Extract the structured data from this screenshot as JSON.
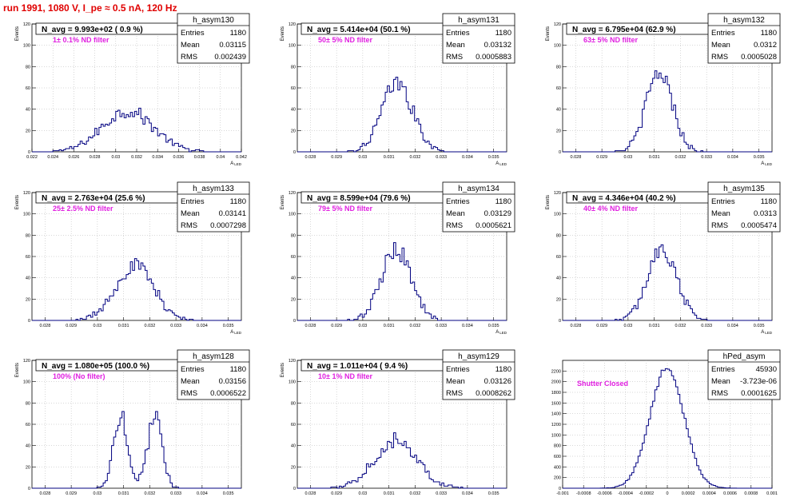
{
  "page_title": "run 1991,  1080 V, I_pe ≈ 0.5 nA, 120 Hz",
  "colors": {
    "title": "#e00000",
    "histogram": "#000080",
    "annotation": "#e020e0",
    "grid": "#b0b0b0"
  },
  "chart_data": [
    {
      "type": "histogram",
      "name": "h_asym130",
      "header": "N_avg = 9.993e+02 ( 0.9 %)",
      "annotation": "1± 0.1% ND filter",
      "stats": {
        "entries": "1180",
        "mean": "0.03115",
        "rms": "0.002439"
      },
      "xlabel": "A_LED",
      "ylabel": "Events",
      "xlim": [
        0.022,
        0.042
      ],
      "ylim": [
        0,
        120
      ],
      "xticks": [
        "0.022",
        "0.024",
        "0.026",
        "0.028",
        "0.03",
        "0.032",
        "0.034",
        "0.036",
        "0.038",
        "0.04",
        "0.042"
      ],
      "yticks": [
        "0",
        "20",
        "40",
        "60",
        "80",
        "100",
        "120"
      ],
      "grid": true,
      "stats_box": "top-right",
      "shape": "gaussian",
      "mean": 0.03115,
      "sigma": 0.002439,
      "entries": 1180,
      "bin_width": 0.0002
    },
    {
      "type": "histogram",
      "name": "h_asym131",
      "header": "N_avg = 5.414e+04 (50.1 %)",
      "annotation": "50± 5% ND filter",
      "stats": {
        "entries": "1180",
        "mean": "0.03132",
        "rms": "0.0005883"
      },
      "xlabel": "A_LED",
      "ylabel": "Events",
      "xlim": [
        0.0275,
        0.0355
      ],
      "ylim": [
        0,
        120
      ],
      "xticks": [
        "0.028",
        "0.029",
        "0.03",
        "0.031",
        "0.032",
        "0.033",
        "0.034",
        "0.035"
      ],
      "yticks": [
        "0",
        "20",
        "40",
        "60",
        "80",
        "100",
        "120"
      ],
      "grid": true,
      "stats_box": "top-right",
      "shape": "gaussian",
      "mean": 0.03132,
      "sigma": 0.0005883,
      "entries": 1180,
      "bin_width": 8e-05
    },
    {
      "type": "histogram",
      "name": "h_asym132",
      "header": "N_avg = 6.795e+04 (62.9 %)",
      "annotation": "63± 5% ND filter",
      "stats": {
        "entries": "1180",
        "mean": "0.0312",
        "rms": "0.0005028"
      },
      "xlabel": "A_LED",
      "ylabel": "Events",
      "xlim": [
        0.0275,
        0.0355
      ],
      "ylim": [
        0,
        120
      ],
      "xticks": [
        "0.028",
        "0.029",
        "0.03",
        "0.031",
        "0.032",
        "0.033",
        "0.034",
        "0.035"
      ],
      "yticks": [
        "0",
        "20",
        "40",
        "60",
        "80",
        "100",
        "120"
      ],
      "grid": true,
      "stats_box": "top-right",
      "shape": "gaussian",
      "mean": 0.0312,
      "sigma": 0.0005028,
      "entries": 1180,
      "bin_width": 8e-05
    },
    {
      "type": "histogram",
      "name": "h_asym133",
      "header": "N_avg = 2.763e+04 (25.6 %)",
      "annotation": "25± 2.5% ND filter",
      "stats": {
        "entries": "1180",
        "mean": "0.03141",
        "rms": "0.0007298"
      },
      "xlabel": "A_LED",
      "ylabel": "Events",
      "xlim": [
        0.0275,
        0.0355
      ],
      "ylim": [
        0,
        120
      ],
      "xticks": [
        "0.028",
        "0.029",
        "0.03",
        "0.031",
        "0.032",
        "0.033",
        "0.034",
        "0.035"
      ],
      "yticks": [
        "0",
        "20",
        "40",
        "60",
        "80",
        "100",
        "120"
      ],
      "grid": true,
      "stats_box": "top-right",
      "shape": "gaussian",
      "mean": 0.03141,
      "sigma": 0.0007298,
      "entries": 1180,
      "bin_width": 8e-05
    },
    {
      "type": "histogram",
      "name": "h_asym134",
      "header": "N_avg = 8.599e+04 (79.6 %)",
      "annotation": "79± 5% ND filter",
      "stats": {
        "entries": "1180",
        "mean": "0.03129",
        "rms": "0.0005621"
      },
      "xlabel": "A_LED",
      "ylabel": "Events",
      "xlim": [
        0.0275,
        0.0355
      ],
      "ylim": [
        0,
        120
      ],
      "xticks": [
        "0.028",
        "0.029",
        "0.03",
        "0.031",
        "0.032",
        "0.033",
        "0.034",
        "0.035"
      ],
      "yticks": [
        "0",
        "20",
        "40",
        "60",
        "80",
        "100",
        "120"
      ],
      "grid": true,
      "stats_box": "top-right",
      "shape": "gaussian",
      "mean": 0.03129,
      "sigma": 0.0005621,
      "entries": 1180,
      "bin_width": 8e-05
    },
    {
      "type": "histogram",
      "name": "h_asym135",
      "header": "N_avg = 4.346e+04 (40.2 %)",
      "annotation": "40± 4% ND filter",
      "stats": {
        "entries": "1180",
        "mean": "0.0313",
        "rms": "0.0005474"
      },
      "xlabel": "A_LED",
      "ylabel": "Events",
      "xlim": [
        0.0275,
        0.0355
      ],
      "ylim": [
        0,
        120
      ],
      "xticks": [
        "0.028",
        "0.029",
        "0.03",
        "0.031",
        "0.032",
        "0.033",
        "0.034",
        "0.035"
      ],
      "yticks": [
        "0",
        "20",
        "40",
        "60",
        "80",
        "100",
        "120"
      ],
      "grid": true,
      "stats_box": "top-right",
      "shape": "gaussian",
      "mean": 0.0313,
      "sigma": 0.0005474,
      "entries": 1180,
      "bin_width": 8e-05
    },
    {
      "type": "histogram",
      "name": "h_asym128",
      "header": "N_avg = 1.080e+05 (100.0 %)",
      "annotation": "100% (No filter)",
      "stats": {
        "entries": "1180",
        "mean": "0.03156",
        "rms": "0.0006522"
      },
      "xlabel": "A_LED",
      "ylabel": "Events",
      "xlim": [
        0.0275,
        0.0355
      ],
      "ylim": [
        0,
        120
      ],
      "xticks": [
        "0.028",
        "0.029",
        "0.03",
        "0.031",
        "0.032",
        "0.033",
        "0.034",
        "0.035"
      ],
      "yticks": [
        "0",
        "20",
        "40",
        "60",
        "80",
        "100",
        "120"
      ],
      "grid": true,
      "stats_box": "top-right",
      "shape": "bimodal",
      "peaks": [
        0.0309,
        0.0322
      ],
      "peak_sigma": 0.00028,
      "mean": 0.03156,
      "sigma": 0.0006522,
      "entries": 1180,
      "bin_width": 8e-05
    },
    {
      "type": "histogram",
      "name": "h_asym129",
      "header": "N_avg = 1.011e+04 ( 9.4 %)",
      "annotation": "10± 1% ND filter",
      "stats": {
        "entries": "1180",
        "mean": "0.03126",
        "rms": "0.0008262"
      },
      "xlabel": "A_LED",
      "ylabel": "Events",
      "xlim": [
        0.0275,
        0.0355
      ],
      "ylim": [
        0,
        120
      ],
      "xticks": [
        "0.028",
        "0.029",
        "0.03",
        "0.031",
        "0.032",
        "0.033",
        "0.034",
        "0.035"
      ],
      "yticks": [
        "0",
        "20",
        "40",
        "60",
        "80",
        "100",
        "120"
      ],
      "grid": true,
      "stats_box": "top-right",
      "shape": "gaussian",
      "mean": 0.03126,
      "sigma": 0.0008262,
      "entries": 1180,
      "bin_width": 8e-05
    },
    {
      "type": "histogram",
      "name": "hPed_asym",
      "header": "",
      "annotation": "Shutter Closed",
      "stats": {
        "entries": "45930",
        "mean": "-3.723e-06",
        "rms": "0.0001625"
      },
      "xlabel": "",
      "ylabel": "",
      "xlim": [
        -0.001,
        0.001
      ],
      "ylim": [
        0,
        2400
      ],
      "xticks": [
        "-0.001",
        "-0.0008",
        "-0.0006",
        "-0.0004",
        "-0.0002",
        "0",
        "0.0002",
        "0.0004",
        "0.0006",
        "0.0008",
        "0.001"
      ],
      "yticks": [
        "0",
        "200",
        "400",
        "600",
        "800",
        "1000",
        "1200",
        "1400",
        "1600",
        "1800",
        "2000",
        "2200"
      ],
      "grid": true,
      "stats_box": "top-right",
      "shape": "gaussian",
      "mean": -3.723e-06,
      "sigma": 0.0001625,
      "entries": 45930,
      "bin_width": 2e-05
    }
  ]
}
